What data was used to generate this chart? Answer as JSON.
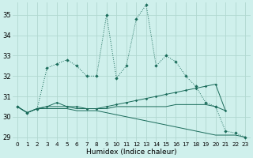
{
  "title": "",
  "xlabel": "Humidex (Indice chaleur)",
  "background_color": "#cff0ec",
  "grid_color": "#b0d8d0",
  "line_color": "#1a6b5a",
  "xlim": [
    -0.5,
    23.5
  ],
  "ylim": [
    28.8,
    35.6
  ],
  "yticks": [
    29,
    30,
    31,
    32,
    33,
    34,
    35
  ],
  "xtick_labels": [
    "0",
    "1",
    "2",
    "3",
    "4",
    "5",
    "6",
    "7",
    "8",
    "9",
    "10",
    "11",
    "12",
    "13",
    "14",
    "15",
    "16",
    "17",
    "18",
    "19",
    "20",
    "21",
    "22",
    "23"
  ],
  "series_main": {
    "x": [
      0,
      1,
      2,
      3,
      4,
      5,
      6,
      7,
      8,
      9,
      10,
      11,
      12,
      13,
      14,
      15,
      16,
      17,
      18,
      19,
      20,
      21,
      22,
      23
    ],
    "y": [
      30.5,
      30.2,
      30.4,
      32.4,
      32.6,
      32.8,
      32.5,
      32.0,
      32.0,
      35.0,
      31.9,
      32.5,
      34.8,
      35.5,
      32.5,
      33.0,
      32.7,
      32.0,
      31.5,
      30.7,
      30.5,
      29.3,
      29.2,
      29.0
    ],
    "style": "dotted",
    "marker": true
  },
  "series_others": [
    {
      "x": [
        0,
        1,
        2,
        3,
        4,
        5,
        6,
        7,
        8,
        9,
        10,
        11,
        12,
        13,
        14,
        15,
        16,
        17,
        18,
        19,
        20,
        21,
        22,
        23
      ],
      "y": [
        30.5,
        30.2,
        30.4,
        30.4,
        30.4,
        30.4,
        30.3,
        30.3,
        30.3,
        30.2,
        30.1,
        30.0,
        29.9,
        29.8,
        29.7,
        29.6,
        29.5,
        29.4,
        29.3,
        29.2,
        29.1,
        29.1,
        29.1,
        29.0
      ],
      "style": "solid",
      "marker": false
    },
    {
      "x": [
        0,
        1,
        2,
        3,
        4,
        5,
        6,
        7,
        8,
        9,
        10,
        11,
        12,
        13,
        14,
        15,
        16,
        17,
        18,
        19,
        20,
        21
      ],
      "y": [
        30.5,
        30.2,
        30.4,
        30.5,
        30.7,
        30.5,
        30.5,
        30.4,
        30.4,
        30.5,
        30.6,
        30.7,
        30.8,
        30.9,
        31.0,
        31.1,
        31.2,
        31.3,
        31.4,
        31.5,
        31.6,
        30.3
      ],
      "style": "solid",
      "marker": true
    },
    {
      "x": [
        0,
        1,
        2,
        3,
        4,
        5,
        6,
        7,
        8,
        9,
        10,
        11,
        12,
        13,
        14,
        15,
        16,
        17,
        18,
        19,
        20,
        21
      ],
      "y": [
        30.5,
        30.2,
        30.4,
        30.5,
        30.5,
        30.5,
        30.4,
        30.4,
        30.4,
        30.4,
        30.5,
        30.5,
        30.5,
        30.5,
        30.5,
        30.5,
        30.6,
        30.6,
        30.6,
        30.6,
        30.5,
        30.3
      ],
      "style": "solid",
      "marker": false
    }
  ]
}
